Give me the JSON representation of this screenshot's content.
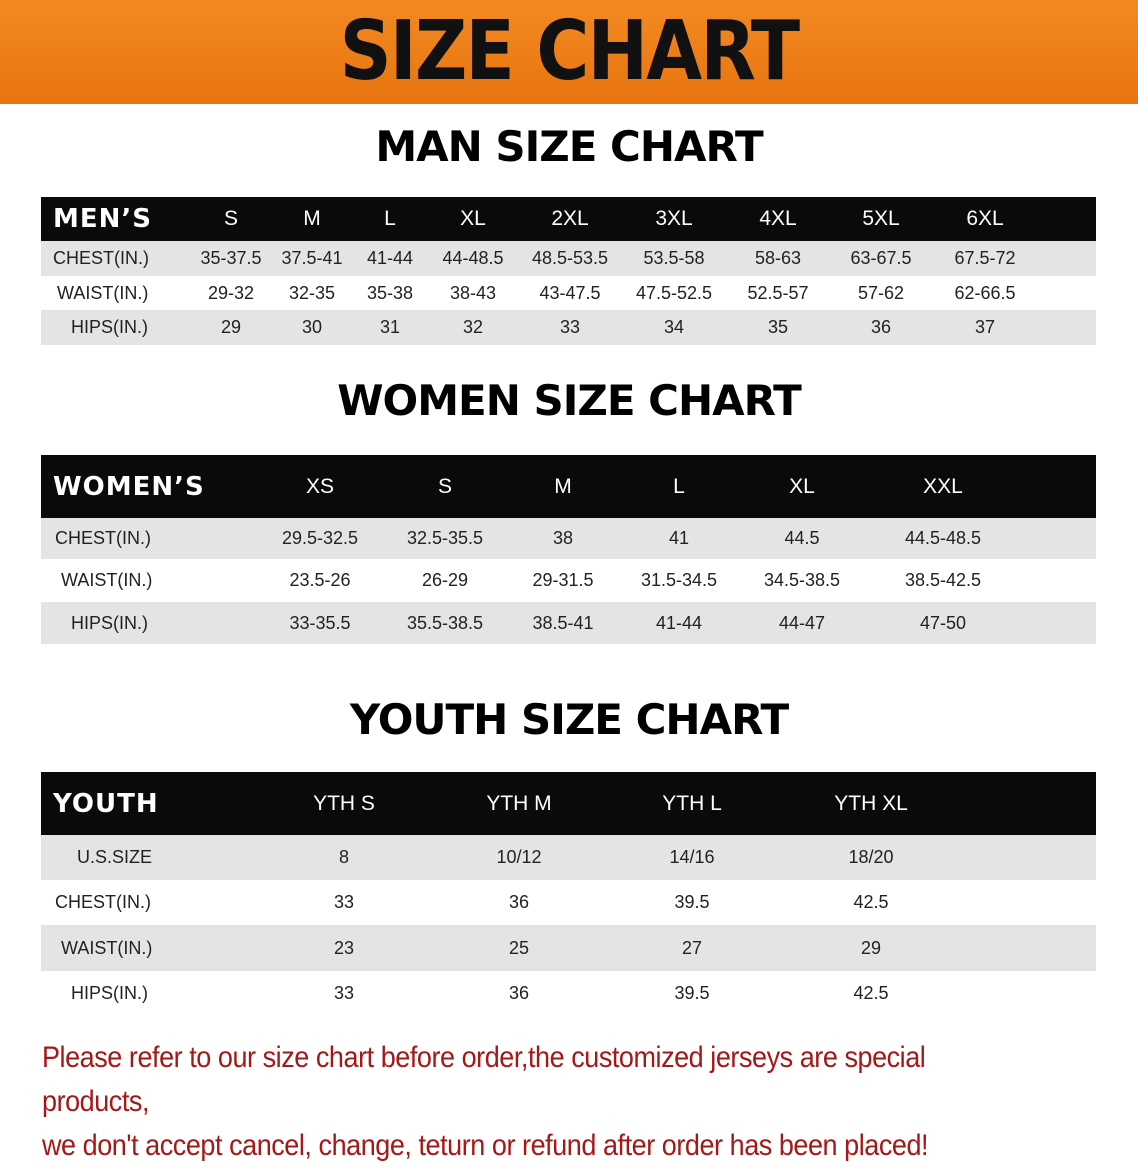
{
  "banner_title": "SIZE CHART",
  "men": {
    "title": "MAN SIZE CHART",
    "header": [
      "MEN’S",
      "S",
      "M",
      "L",
      "XL",
      "2XL",
      "3XL",
      "4XL",
      "5XL",
      "6XL"
    ],
    "rows": [
      [
        "CHEST(IN.)",
        "35-37.5",
        "37.5-41",
        "41-44",
        "44-48.5",
        "48.5-53.5",
        "53.5-58",
        "58-63",
        "63-67.5",
        "67.5-72"
      ],
      [
        "WAIST(IN.)",
        "29-32",
        "32-35",
        "35-38",
        "38-43",
        "43-47.5",
        "47.5-52.5",
        "52.5-57",
        "57-62",
        "62-66.5"
      ],
      [
        "HIPS(IN.)",
        "29",
        "30",
        "31",
        "32",
        "33",
        "34",
        "35",
        "36",
        "37"
      ]
    ]
  },
  "women": {
    "title": "WOMEN SIZE CHART",
    "header": [
      "WOMEN’S",
      "XS",
      "S",
      "M",
      "L",
      "XL",
      "XXL"
    ],
    "rows": [
      [
        "CHEST(IN.)",
        "29.5-32.5",
        "32.5-35.5",
        "38",
        "41",
        "44.5",
        "44.5-48.5"
      ],
      [
        "WAIST(IN.)",
        "23.5-26",
        "26-29",
        "29-31.5",
        "31.5-34.5",
        "34.5-38.5",
        "38.5-42.5"
      ],
      [
        "HIPS(IN.)",
        "33-35.5",
        "35.5-38.5",
        "38.5-41",
        "41-44",
        "44-47",
        "47-50"
      ]
    ]
  },
  "youth": {
    "title": "YOUTH SIZE CHART",
    "header": [
      "YOUTH",
      "YTH S",
      "YTH M",
      "YTH L",
      "YTH XL"
    ],
    "rows": [
      [
        "U.S.SIZE",
        "8",
        "10/12",
        "14/16",
        "18/20"
      ],
      [
        "CHEST(IN.)",
        "33",
        "36",
        "39.5",
        "42.5"
      ],
      [
        "WAIST(IN.)",
        "23",
        "25",
        "27",
        "29"
      ],
      [
        "HIPS(IN.)",
        "33",
        "36",
        "39.5",
        "42.5"
      ]
    ]
  },
  "note": [
    "Please refer to our size chart before order,the customized jerseys are special products,",
    "we don't accept cancel, change, teturn or refund after order has been placed!"
  ],
  "colors": {
    "banner": "#ee7f1a",
    "header_bg": "#0a0a0a",
    "stripe": "#e4e4e4",
    "note": "#a51818"
  }
}
